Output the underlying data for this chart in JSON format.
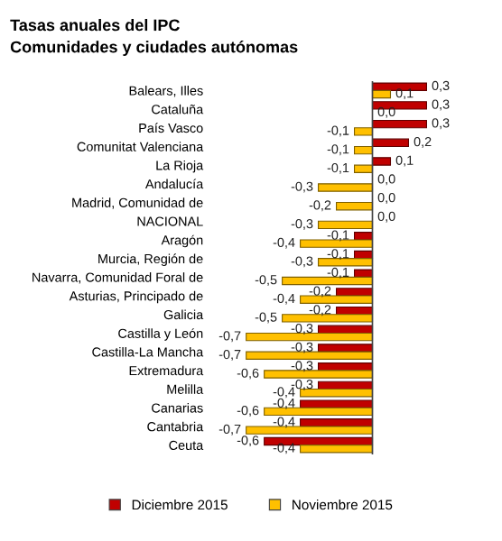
{
  "chart_data": {
    "type": "bar",
    "orientation": "horizontal",
    "title": "Tasas anuales del IPC",
    "subtitle": "Comunidades y ciudades autónomas",
    "categories": [
      "Balears, Illes",
      "Cataluña",
      "País Vasco",
      "Comunitat Valenciana",
      "La Rioja",
      "Andalucía",
      "Madrid, Comunidad de",
      "NACIONAL",
      "Aragón",
      "Murcia, Región de",
      "Navarra, Comunidad Foral de",
      "Asturias, Principado de",
      "Galicia",
      "Castilla y León",
      "Castilla-La Mancha",
      "Extremadura",
      "Melilla",
      "Canarias",
      "Cantabria",
      "Ceuta"
    ],
    "series": [
      {
        "name": "Diciembre 2015",
        "color": "#c00000",
        "values": [
          0.3,
          0.3,
          0.3,
          0.2,
          0.1,
          0.0,
          0.0,
          0.0,
          -0.1,
          -0.1,
          -0.1,
          -0.2,
          -0.2,
          -0.3,
          -0.3,
          -0.3,
          -0.3,
          -0.4,
          -0.4,
          -0.6
        ],
        "value_labels": [
          "0,3",
          "0,3",
          "0,3",
          "0,2",
          "0,1",
          "0,0",
          "0,0",
          "0,0",
          "-0,1",
          "-0,1",
          "-0,1",
          "-0,2",
          "-0,2",
          "-0,3",
          "-0,3",
          "-0,3",
          "-0,3",
          "-0,4",
          "-0,4",
          "-0,6"
        ]
      },
      {
        "name": "Noviembre 2015",
        "color": "#ffc000",
        "values": [
          0.1,
          0.0,
          -0.1,
          -0.1,
          -0.1,
          -0.3,
          -0.2,
          -0.3,
          -0.4,
          -0.3,
          -0.5,
          -0.4,
          -0.5,
          -0.7,
          -0.7,
          -0.6,
          -0.4,
          -0.6,
          -0.7,
          -0.4
        ],
        "value_labels": [
          "0,1",
          "0,0",
          "-0,1",
          "-0,1",
          "-0,1",
          "-0,3",
          "-0,2",
          "-0,3",
          "-0,4",
          "-0,3",
          "-0,5",
          "-0,4",
          "-0,5",
          "-0,7",
          "-0,7",
          "-0,6",
          "-0,4",
          "-0,6",
          "-0,7",
          "-0,4"
        ]
      }
    ],
    "legend": "bottom",
    "grid": false
  }
}
